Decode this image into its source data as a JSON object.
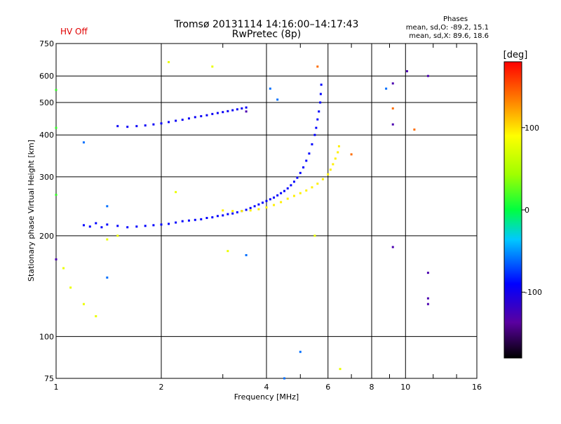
{
  "header": {
    "title": "Tromsø 20131114 14:16:00–14:17:43",
    "subtitle": "RwPretec (8p)",
    "hv_status": "HV Off",
    "stats_heading": "Phases",
    "stats_o": "mean, sd,O: -89.2, 15.1",
    "stats_x": "mean, sd,X: 89.6, 18.6"
  },
  "colors": {
    "hv_status": "#e00000",
    "o_trace": "#1a2fe0",
    "x_trace": "#f2e400"
  },
  "chart_data": {
    "type": "scatter",
    "xlabel": "Frequency [MHz]",
    "ylabel": "Stationary phase Virtual Height [km]",
    "xscale": "log",
    "yscale": "log",
    "xlim": [
      1,
      16
    ],
    "ylim": [
      75,
      750
    ],
    "xticks": [
      1,
      2,
      4,
      6,
      8,
      10,
      16
    ],
    "xtick_labels": [
      "1",
      "2",
      "4",
      "6",
      "8",
      "10",
      "16"
    ],
    "xminor": [
      3,
      5,
      7,
      9,
      12,
      14
    ],
    "yticks": [
      75,
      100,
      200,
      300,
      400,
      500,
      600,
      750
    ],
    "ytick_labels": [
      "75",
      "100",
      "200",
      "300",
      "400",
      "500",
      "600",
      "750"
    ],
    "grid": true,
    "colorbar": {
      "label": "[deg]",
      "range": [
        -180,
        180
      ],
      "ticks": [
        -100,
        0,
        100
      ],
      "tick_labels": [
        "-100",
        "0",
        "100"
      ],
      "colormap": "rainbow"
    },
    "series": [
      {
        "phase": -90,
        "points": [
          [
            1.2,
            215
          ],
          [
            1.25,
            213
          ],
          [
            1.3,
            218
          ],
          [
            1.35,
            212
          ],
          [
            1.4,
            216
          ],
          [
            1.5,
            214
          ],
          [
            1.6,
            212
          ],
          [
            1.7,
            213
          ],
          [
            1.8,
            214
          ],
          [
            1.9,
            215
          ],
          [
            2.0,
            216
          ],
          [
            2.1,
            217
          ],
          [
            2.2,
            219
          ],
          [
            2.3,
            221
          ],
          [
            2.4,
            222
          ],
          [
            2.5,
            223
          ],
          [
            2.6,
            224
          ],
          [
            2.7,
            226
          ],
          [
            2.8,
            227
          ],
          [
            2.9,
            229
          ],
          [
            3.0,
            230
          ],
          [
            3.1,
            232
          ],
          [
            3.2,
            233
          ],
          [
            3.3,
            235
          ],
          [
            3.4,
            237
          ],
          [
            3.5,
            239
          ],
          [
            3.6,
            242
          ],
          [
            3.7,
            245
          ],
          [
            3.8,
            248
          ],
          [
            3.9,
            251
          ],
          [
            4.0,
            254
          ],
          [
            4.1,
            257
          ],
          [
            4.2,
            260
          ],
          [
            4.3,
            264
          ],
          [
            4.4,
            268
          ],
          [
            4.5,
            272
          ],
          [
            4.6,
            277
          ],
          [
            4.7,
            283
          ],
          [
            4.8,
            290
          ],
          [
            4.9,
            298
          ],
          [
            5.0,
            308
          ],
          [
            5.1,
            320
          ],
          [
            5.2,
            335
          ],
          [
            5.3,
            352
          ],
          [
            5.4,
            375
          ],
          [
            5.5,
            400
          ],
          [
            5.55,
            420
          ],
          [
            5.6,
            445
          ],
          [
            5.65,
            470
          ],
          [
            5.7,
            500
          ],
          [
            5.72,
            530
          ],
          [
            5.74,
            565
          ]
        ]
      },
      {
        "phase": -95,
        "points": [
          [
            1.5,
            425
          ],
          [
            1.6,
            423
          ],
          [
            1.7,
            425
          ],
          [
            1.8,
            427
          ],
          [
            1.9,
            430
          ],
          [
            2.0,
            433
          ],
          [
            2.1,
            437
          ],
          [
            2.2,
            441
          ],
          [
            2.3,
            444
          ],
          [
            2.4,
            448
          ],
          [
            2.5,
            452
          ],
          [
            2.6,
            455
          ],
          [
            2.7,
            458
          ],
          [
            2.8,
            462
          ],
          [
            2.9,
            465
          ],
          [
            3.0,
            468
          ],
          [
            3.1,
            471
          ],
          [
            3.2,
            474
          ],
          [
            3.3,
            477
          ],
          [
            3.4,
            480
          ],
          [
            3.5,
            483
          ]
        ]
      },
      {
        "phase": 95,
        "points": [
          [
            3.0,
            238
          ],
          [
            3.2,
            237
          ],
          [
            3.4,
            237
          ],
          [
            3.6,
            238
          ],
          [
            3.8,
            240
          ],
          [
            4.0,
            243
          ],
          [
            4.2,
            247
          ],
          [
            4.4,
            252
          ],
          [
            4.6,
            258
          ],
          [
            4.8,
            263
          ],
          [
            5.0,
            268
          ],
          [
            5.2,
            273
          ],
          [
            5.4,
            279
          ],
          [
            5.6,
            286
          ],
          [
            5.8,
            295
          ],
          [
            6.0,
            305
          ],
          [
            6.1,
            315
          ],
          [
            6.2,
            327
          ],
          [
            6.3,
            340
          ],
          [
            6.4,
            355
          ],
          [
            6.45,
            370
          ]
        ]
      },
      {
        "phase": 15,
        "points": [
          [
            1.0,
            420
          ],
          [
            1.0,
            545
          ],
          [
            1.0,
            265
          ]
        ]
      },
      {
        "phase": 140,
        "points": [
          [
            5.6,
            640
          ],
          [
            9.2,
            480
          ],
          [
            10.6,
            415
          ],
          [
            7.0,
            350
          ]
        ]
      },
      {
        "phase": -140,
        "points": [
          [
            9.2,
            570
          ],
          [
            11.6,
            600
          ],
          [
            11.6,
            155
          ],
          [
            11.6,
            130
          ],
          [
            11.6,
            125
          ],
          [
            9.2,
            430
          ],
          [
            9.2,
            185
          ],
          [
            10.1,
            620
          ],
          [
            1.0,
            170
          ],
          [
            3.5,
            470
          ]
        ]
      },
      {
        "phase": 80,
        "points": [
          [
            2.1,
            660
          ],
          [
            2.8,
            640
          ],
          [
            2.2,
            270
          ],
          [
            1.05,
            160
          ],
          [
            1.1,
            140
          ],
          [
            1.2,
            125
          ],
          [
            1.3,
            115
          ],
          [
            1.5,
            200
          ],
          [
            1.4,
            195
          ],
          [
            3.1,
            180
          ],
          [
            5.5,
            200
          ],
          [
            6.5,
            80
          ]
        ]
      },
      {
        "phase": -60,
        "points": [
          [
            4.1,
            550
          ],
          [
            4.3,
            510
          ],
          [
            8.8,
            550
          ],
          [
            1.2,
            380
          ],
          [
            1.4,
            245
          ],
          [
            1.4,
            150
          ],
          [
            5.0,
            90
          ],
          [
            4.5,
            75
          ],
          [
            3.5,
            175
          ]
        ]
      }
    ]
  }
}
